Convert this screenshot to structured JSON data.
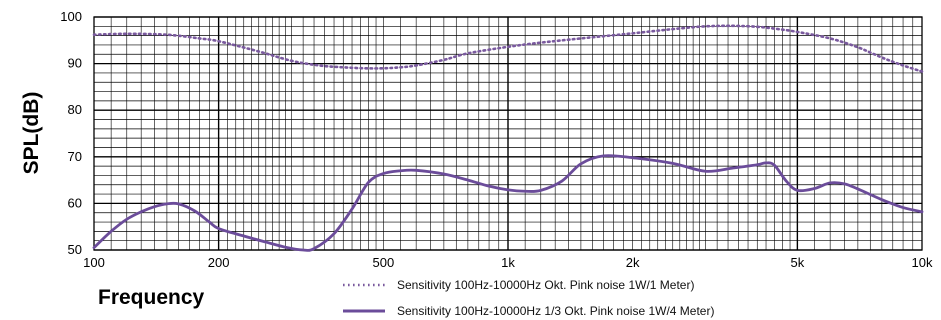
{
  "chart_data": {
    "type": "line",
    "title": "",
    "xlabel": "Frequency",
    "ylabel": "SPL(dB)",
    "x_scale": "log",
    "xlim": [
      100,
      10000
    ],
    "ylim": [
      50,
      100
    ],
    "grid": true,
    "legend_placement": "bottom-center",
    "x_tick_labels": [
      {
        "value": 100,
        "label": "100"
      },
      {
        "value": 200,
        "label": "200"
      },
      {
        "value": 500,
        "label": "500"
      },
      {
        "value": 1000,
        "label": "1k"
      },
      {
        "value": 2000,
        "label": "2k"
      },
      {
        "value": 5000,
        "label": "5k"
      },
      {
        "value": 10000,
        "label": "10k"
      }
    ],
    "y_tick_labels": [
      {
        "value": 50,
        "label": "50"
      },
      {
        "value": 60,
        "label": "60"
      },
      {
        "value": 70,
        "label": "70"
      },
      {
        "value": 80,
        "label": "80"
      },
      {
        "value": 90,
        "label": "90"
      },
      {
        "value": 100,
        "label": "100"
      }
    ],
    "series": [
      {
        "name": "Sensitivity 100Hz-10000Hz Okt. Pink noise 1W/1 Meter)",
        "style": "dotted",
        "color": "#7a5a9e",
        "points": [
          [
            100,
            96.2
          ],
          [
            120,
            96.4
          ],
          [
            150,
            96.2
          ],
          [
            180,
            95.4
          ],
          [
            200,
            94.8
          ],
          [
            250,
            92.6
          ],
          [
            300,
            90.6
          ],
          [
            350,
            89.6
          ],
          [
            400,
            89.2
          ],
          [
            450,
            89.0
          ],
          [
            500,
            89.0
          ],
          [
            550,
            89.2
          ],
          [
            600,
            89.6
          ],
          [
            700,
            90.8
          ],
          [
            800,
            92.2
          ],
          [
            1000,
            93.6
          ],
          [
            1200,
            94.5
          ],
          [
            1500,
            95.4
          ],
          [
            2000,
            96.5
          ],
          [
            2500,
            97.4
          ],
          [
            3000,
            98.0
          ],
          [
            3500,
            98.1
          ],
          [
            4000,
            97.9
          ],
          [
            4500,
            97.4
          ],
          [
            5000,
            96.8
          ],
          [
            6000,
            95.4
          ],
          [
            7000,
            93.5
          ],
          [
            8000,
            91.3
          ],
          [
            9000,
            89.6
          ],
          [
            10000,
            88.3
          ]
        ]
      },
      {
        "name": "Sensitivity 100Hz-10000Hz 1/3 Okt. Pink noise 1W/4 Meter)",
        "style": "solid",
        "color": "#6b4c9a",
        "points": [
          [
            100,
            50.5
          ],
          [
            110,
            54.0
          ],
          [
            120,
            56.6
          ],
          [
            130,
            58.2
          ],
          [
            140,
            59.3
          ],
          [
            150,
            59.9
          ],
          [
            160,
            59.9
          ],
          [
            175,
            58.4
          ],
          [
            190,
            56.0
          ],
          [
            200,
            54.6
          ],
          [
            230,
            53.0
          ],
          [
            260,
            51.7
          ],
          [
            290,
            50.6
          ],
          [
            320,
            50.0
          ],
          [
            340,
            50.3
          ],
          [
            380,
            53.5
          ],
          [
            420,
            58.8
          ],
          [
            460,
            64.5
          ],
          [
            500,
            66.4
          ],
          [
            550,
            67.0
          ],
          [
            600,
            67.1
          ],
          [
            700,
            66.3
          ],
          [
            800,
            65.0
          ],
          [
            900,
            63.7
          ],
          [
            1000,
            62.9
          ],
          [
            1100,
            62.6
          ],
          [
            1200,
            62.8
          ],
          [
            1350,
            64.8
          ],
          [
            1500,
            68.5
          ],
          [
            1700,
            70.2
          ],
          [
            2000,
            69.8
          ],
          [
            2500,
            68.6
          ],
          [
            3000,
            66.9
          ],
          [
            3500,
            67.6
          ],
          [
            4000,
            68.3
          ],
          [
            4200,
            68.7
          ],
          [
            4400,
            68.2
          ],
          [
            4700,
            64.8
          ],
          [
            5000,
            62.8
          ],
          [
            5500,
            63.2
          ],
          [
            6000,
            64.4
          ],
          [
            6500,
            64.2
          ],
          [
            7000,
            63.1
          ],
          [
            8000,
            60.8
          ],
          [
            9000,
            59.1
          ],
          [
            10000,
            58.2
          ]
        ]
      }
    ]
  }
}
